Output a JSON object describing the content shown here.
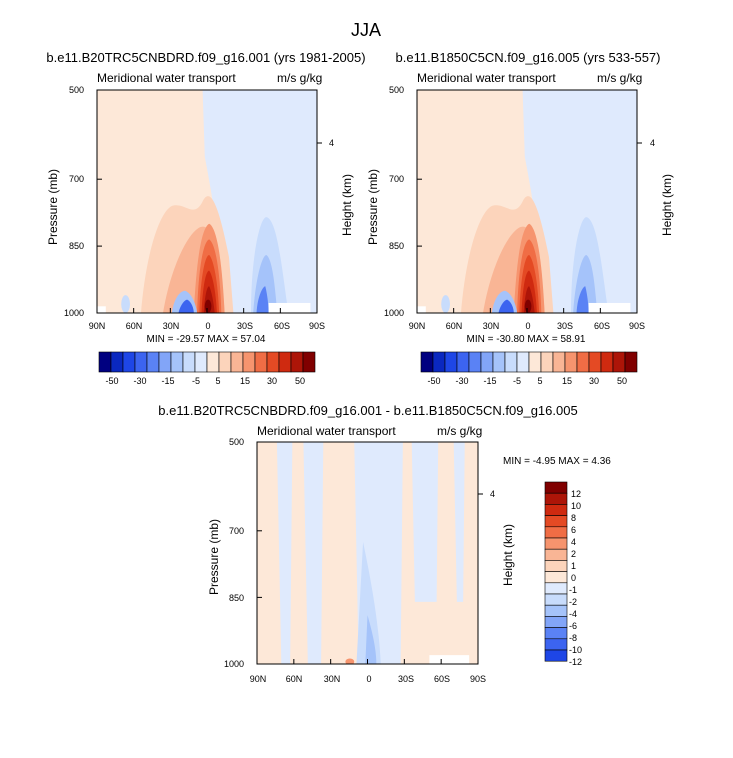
{
  "title": "JJA",
  "colors": {
    "blues": [
      "#000080",
      "#0a28c0",
      "#1e46e6",
      "#3c64f0",
      "#5a82f5",
      "#82a5f8",
      "#a5c3fa",
      "#c8dcfc",
      "#dfeafd"
    ],
    "reds": [
      "#fde8d8",
      "#fcd4bb",
      "#f9b595",
      "#f6946e",
      "#f06d45",
      "#e44a24",
      "#cf2a10",
      "#ad1508",
      "#800000"
    ]
  },
  "panels": [
    {
      "title": "b.e11.B20TRC5CNBDRD.f09_g16.001 (yrs 1981-2005)",
      "left_label": "Meridional water transport",
      "right_label": "m/s g/kg",
      "min_max": "MIN = -29.57  MAX =  57.04"
    },
    {
      "title": "b.e11.B1850C5CN.f09_g16.005 (yrs 533-557)",
      "left_label": "Meridional water transport",
      "right_label": "m/s g/kg",
      "min_max": "MIN = -30.80  MAX =  58.91"
    },
    {
      "title": "b.e11.B20TRC5CNBDRD.f09_g16.001 - b.e11.B1850C5CN.f09_g16.005",
      "left_label": "Meridional water transport",
      "right_label": "m/s g/kg",
      "min_max": "MIN = -4.95  MAX =  4.36"
    }
  ],
  "axes": {
    "ylabel": "Pressure (mb)",
    "y2label": "Height (km)",
    "y_ticks": [
      "500",
      "700",
      "850",
      "1000"
    ],
    "y2_ticks": [
      "4"
    ],
    "x_ticks": [
      "90N",
      "60N",
      "30N",
      "0",
      "30S",
      "60S",
      "90S"
    ]
  },
  "colorbars": {
    "horizontal_labels": [
      "-50",
      "-30",
      "-15",
      "-5",
      "5",
      "15",
      "30",
      "50"
    ],
    "vertical_labels": [
      "12",
      "10",
      "8",
      "6",
      "4",
      "2",
      "1",
      "0",
      "-1",
      "-2",
      "-4",
      "-6",
      "-8",
      "-10",
      "-12"
    ]
  },
  "chart_data": [
    {
      "type": "heatmap",
      "title": "b.e11.B20TRC5CNBDRD.f09_g16.001 (yrs 1981-2005)",
      "xlabel": "",
      "ylabel": "Pressure (mb)",
      "y2label": "Height (km)",
      "x": [
        "90N",
        "60N",
        "30N",
        "0",
        "30S",
        "60S",
        "90S"
      ],
      "y": [
        500,
        700,
        850,
        1000
      ],
      "ylim": [
        1000,
        500
      ],
      "min": -29.57,
      "max": 57.04,
      "levels": [
        -50,
        -40,
        -30,
        -20,
        -15,
        -10,
        -5,
        -2,
        2,
        5,
        10,
        15,
        20,
        30,
        40,
        50
      ]
    },
    {
      "type": "heatmap",
      "title": "b.e11.B1850C5CN.f09_g16.005 (yrs 533-557)",
      "xlabel": "",
      "ylabel": "Pressure (mb)",
      "y2label": "Height (km)",
      "x": [
        "90N",
        "60N",
        "30N",
        "0",
        "30S",
        "60S",
        "90S"
      ],
      "y": [
        500,
        700,
        850,
        1000
      ],
      "ylim": [
        1000,
        500
      ],
      "min": -30.8,
      "max": 58.91,
      "levels": [
        -50,
        -40,
        -30,
        -20,
        -15,
        -10,
        -5,
        -2,
        2,
        5,
        10,
        15,
        20,
        30,
        40,
        50
      ]
    },
    {
      "type": "heatmap",
      "title": "b.e11.B20TRC5CNBDRD.f09_g16.001 - b.e11.B1850C5CN.f09_g16.005",
      "xlabel": "",
      "ylabel": "Pressure (mb)",
      "y2label": "Height (km)",
      "x": [
        "90N",
        "60N",
        "30N",
        "0",
        "30S",
        "60S",
        "90S"
      ],
      "y": [
        500,
        700,
        850,
        1000
      ],
      "ylim": [
        1000,
        500
      ],
      "min": -4.95,
      "max": 4.36,
      "levels": [
        -12,
        -10,
        -8,
        -6,
        -4,
        -2,
        -1,
        0,
        1,
        2,
        4,
        6,
        8,
        10,
        12
      ]
    }
  ]
}
